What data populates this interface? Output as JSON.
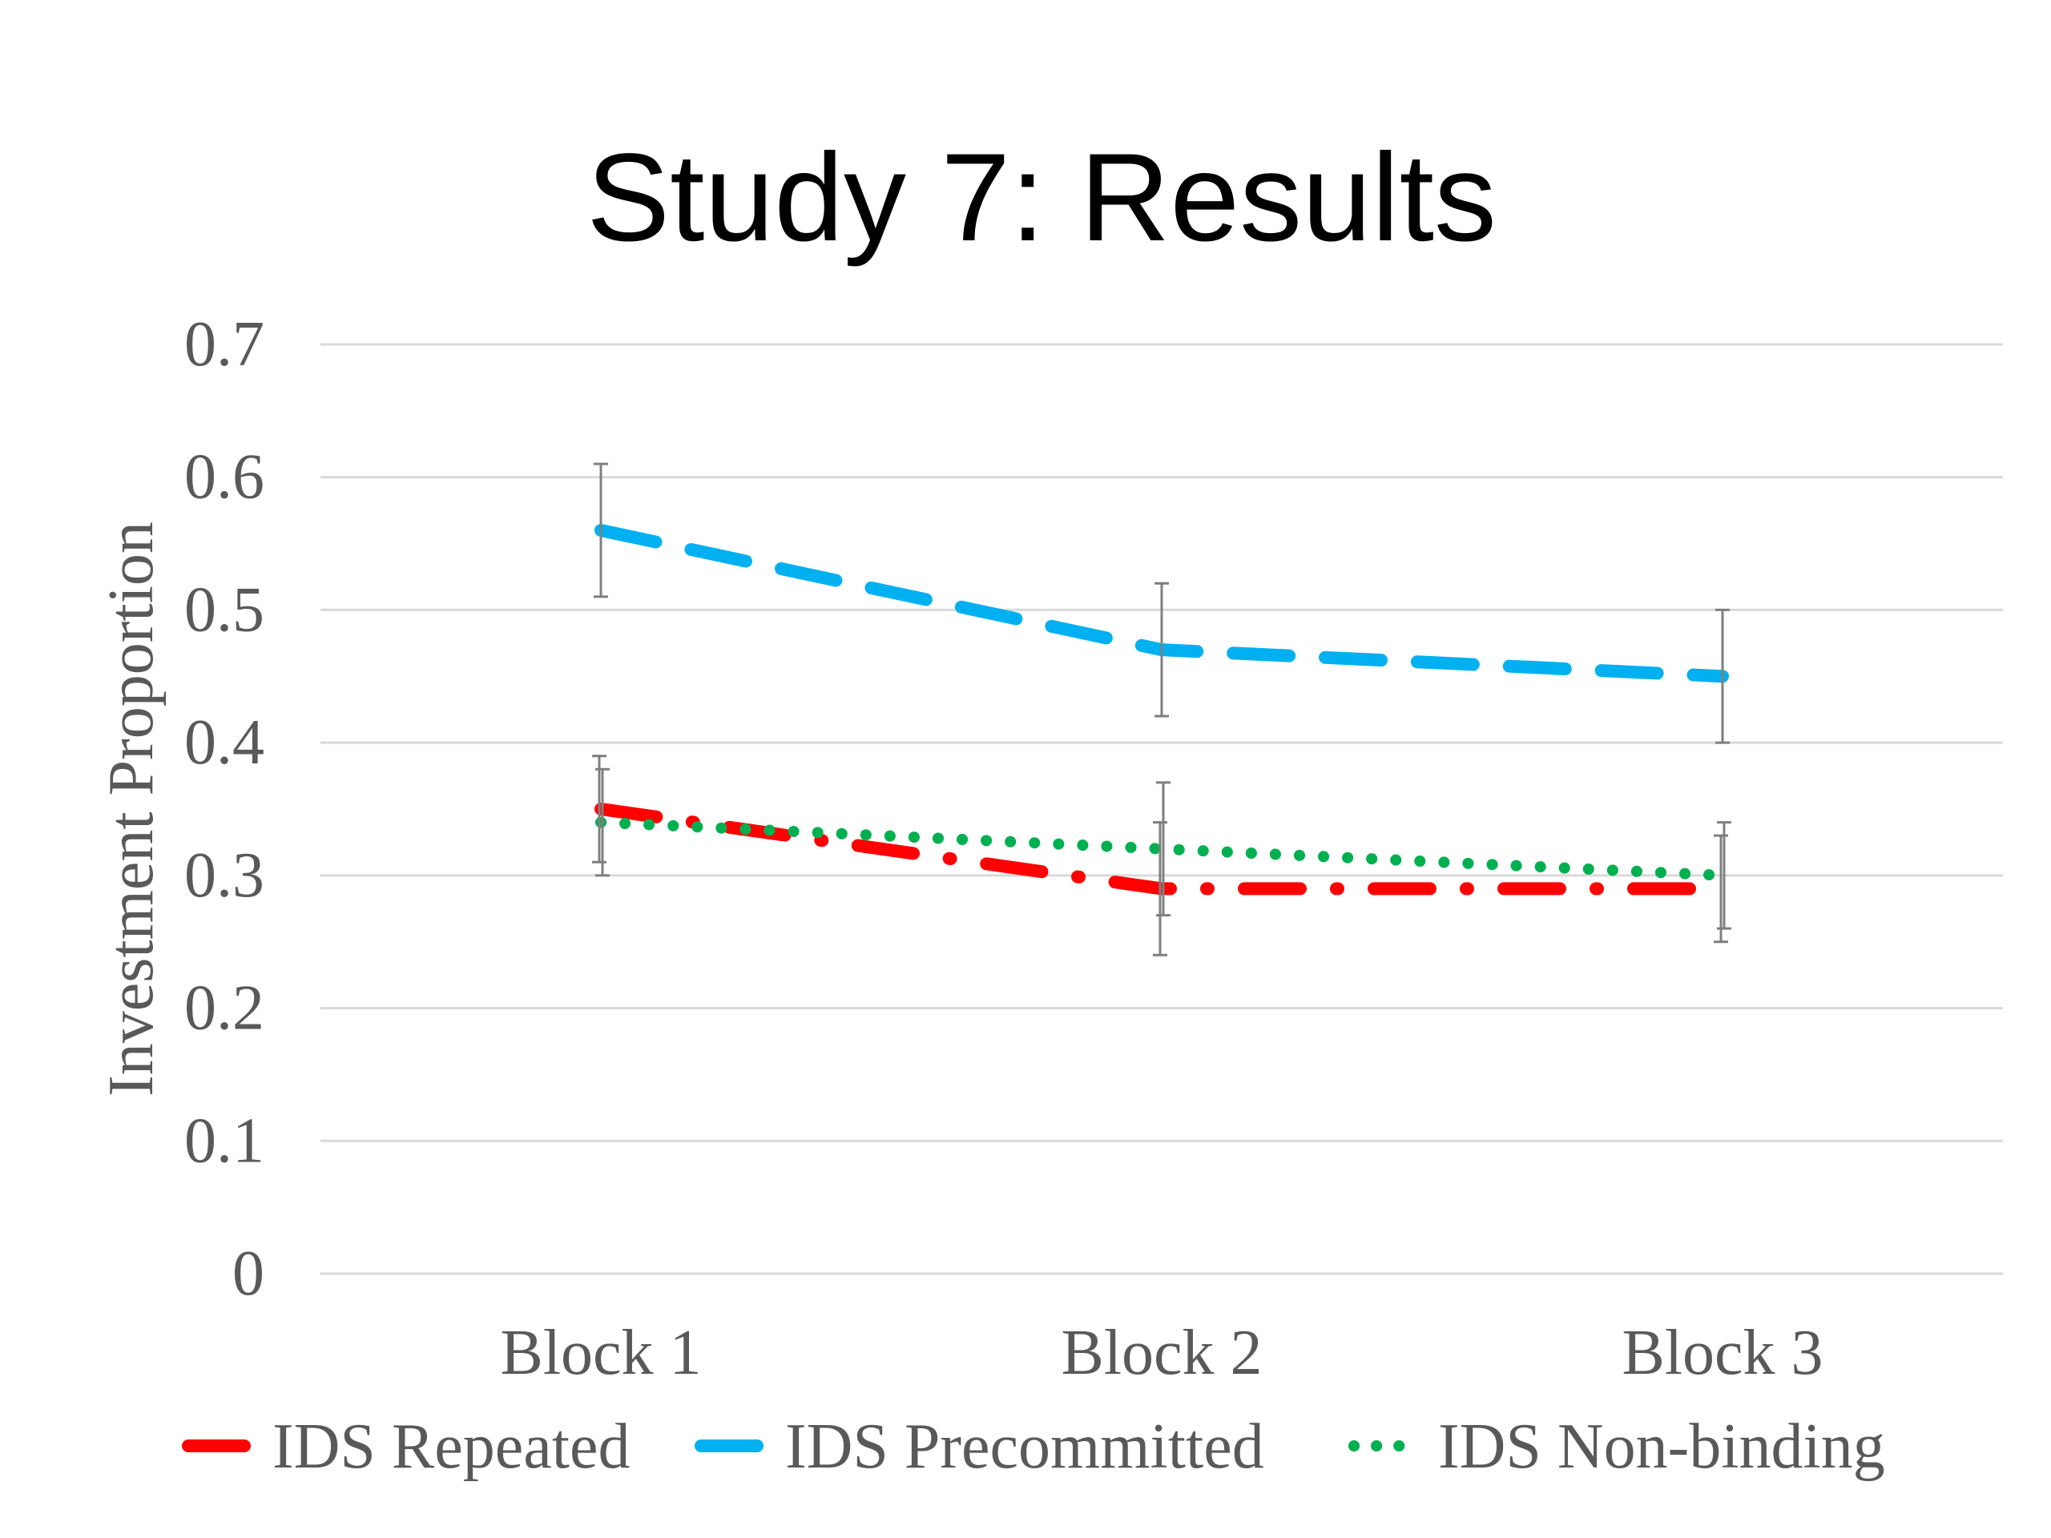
{
  "chart_data": {
    "type": "line",
    "title": "Study 7: Results",
    "xlabel": "",
    "ylabel": "Investment Proportion",
    "categories": [
      "Block 1",
      "Block 2",
      "Block 3"
    ],
    "y_ticks": [
      "0",
      "0.1",
      "0.2",
      "0.3",
      "0.4",
      "0.5",
      "0.6",
      "0.7"
    ],
    "ylim": [
      0,
      0.7
    ],
    "grid": true,
    "legend_position": "bottom",
    "series": [
      {
        "name": "IDS Repeated",
        "values": [
          0.35,
          0.29,
          0.29
        ],
        "error": [
          0.04,
          0.05,
          0.04
        ],
        "color": "#FF0000",
        "style": "long-dash-dot"
      },
      {
        "name": "IDS Precommitted",
        "values": [
          0.56,
          0.47,
          0.45
        ],
        "error": [
          0.05,
          0.05,
          0.05
        ],
        "color": "#00B0F0",
        "style": "dashed"
      },
      {
        "name": "IDS Non-binding",
        "values": [
          0.34,
          0.32,
          0.3
        ],
        "error": [
          0.04,
          0.05,
          0.04
        ],
        "color": "#00B050",
        "style": "dotted"
      }
    ]
  }
}
